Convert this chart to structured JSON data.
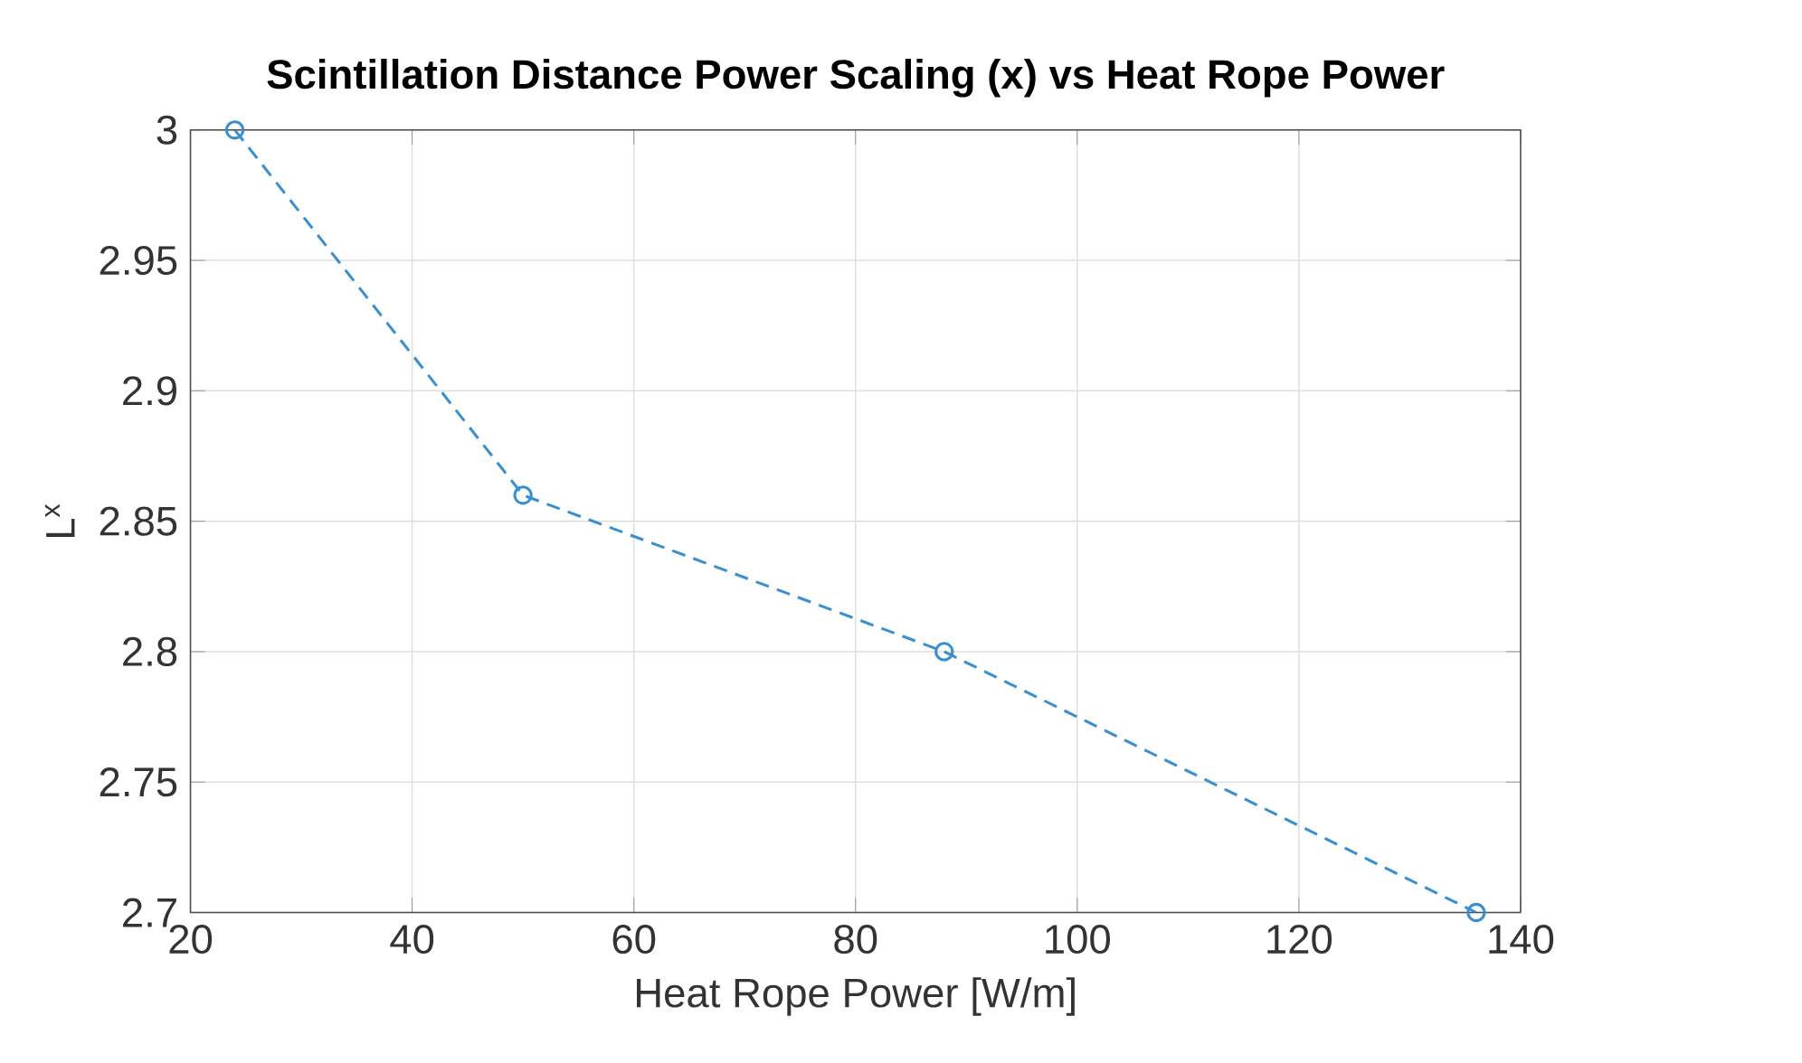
{
  "chart_data": {
    "type": "line",
    "title": "**Scintillation Distance Power Scaling (x) vs Heat Rope Power**",
    "xlabel": "Heat Rope Power [W/m]",
    "ylabel": "L$^{x}$",
    "x": [
      24,
      50,
      88,
      136
    ],
    "series": [
      {
        "color": "#3a8fd0",
        "values": [
          3.0,
          2.86,
          2.8,
          2.7
        ]
      }
    ],
    "xlim": [
      20,
      140
    ],
    "ylim": [
      2.7,
      3
    ],
    "xticks": [
      20,
      40,
      60,
      80,
      100,
      120,
      140
    ],
    "yticks": [
      2.7,
      2.75,
      2.8,
      2.85,
      2.9,
      2.95,
      3
    ],
    "grid": true,
    "marker": "circle",
    "line_style": "dashed"
  }
}
